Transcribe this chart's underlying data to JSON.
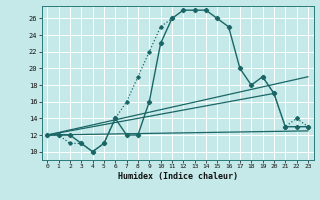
{
  "xlabel": "Humidex (Indice chaleur)",
  "bg_color": "#c5e8e8",
  "grid_color": "#b0d0d0",
  "line_color": "#1a6666",
  "xlim": [
    -0.5,
    23.5
  ],
  "ylim": [
    9.0,
    27.5
  ],
  "xticks": [
    0,
    1,
    2,
    3,
    4,
    5,
    6,
    7,
    8,
    9,
    10,
    11,
    12,
    13,
    14,
    15,
    16,
    17,
    18,
    19,
    20,
    21,
    22,
    23
  ],
  "yticks": [
    10,
    12,
    14,
    16,
    18,
    20,
    22,
    24,
    26
  ],
  "curve_main": [
    [
      0,
      12
    ],
    [
      1,
      12
    ],
    [
      2,
      12
    ],
    [
      3,
      11
    ],
    [
      4,
      10
    ],
    [
      5,
      11
    ],
    [
      6,
      14
    ],
    [
      7,
      12
    ],
    [
      8,
      12
    ],
    [
      9,
      16
    ],
    [
      10,
      23
    ],
    [
      11,
      26
    ],
    [
      12,
      27
    ],
    [
      13,
      27
    ],
    [
      14,
      27
    ],
    [
      15,
      26
    ],
    [
      16,
      25
    ],
    [
      17,
      20
    ],
    [
      18,
      18
    ],
    [
      19,
      19
    ],
    [
      20,
      17
    ],
    [
      21,
      13
    ],
    [
      22,
      13
    ],
    [
      23,
      13
    ]
  ],
  "curve_dotted": [
    [
      0,
      12
    ],
    [
      1,
      12
    ],
    [
      2,
      11
    ],
    [
      3,
      11
    ],
    [
      4,
      10
    ],
    [
      5,
      11
    ],
    [
      6,
      14
    ],
    [
      7,
      16
    ],
    [
      8,
      19
    ],
    [
      9,
      22
    ],
    [
      10,
      25
    ],
    [
      11,
      26
    ]
  ],
  "line_diag1": [
    [
      0,
      12
    ],
    [
      23,
      19
    ]
  ],
  "line_diag2": [
    [
      0,
      12
    ],
    [
      20,
      17
    ]
  ],
  "line_flat": [
    [
      0,
      12
    ],
    [
      23,
      12.5
    ]
  ],
  "curve_right_dashed": [
    [
      19,
      19
    ],
    [
      20,
      17
    ],
    [
      21,
      13
    ],
    [
      22,
      14
    ],
    [
      23,
      13
    ]
  ]
}
